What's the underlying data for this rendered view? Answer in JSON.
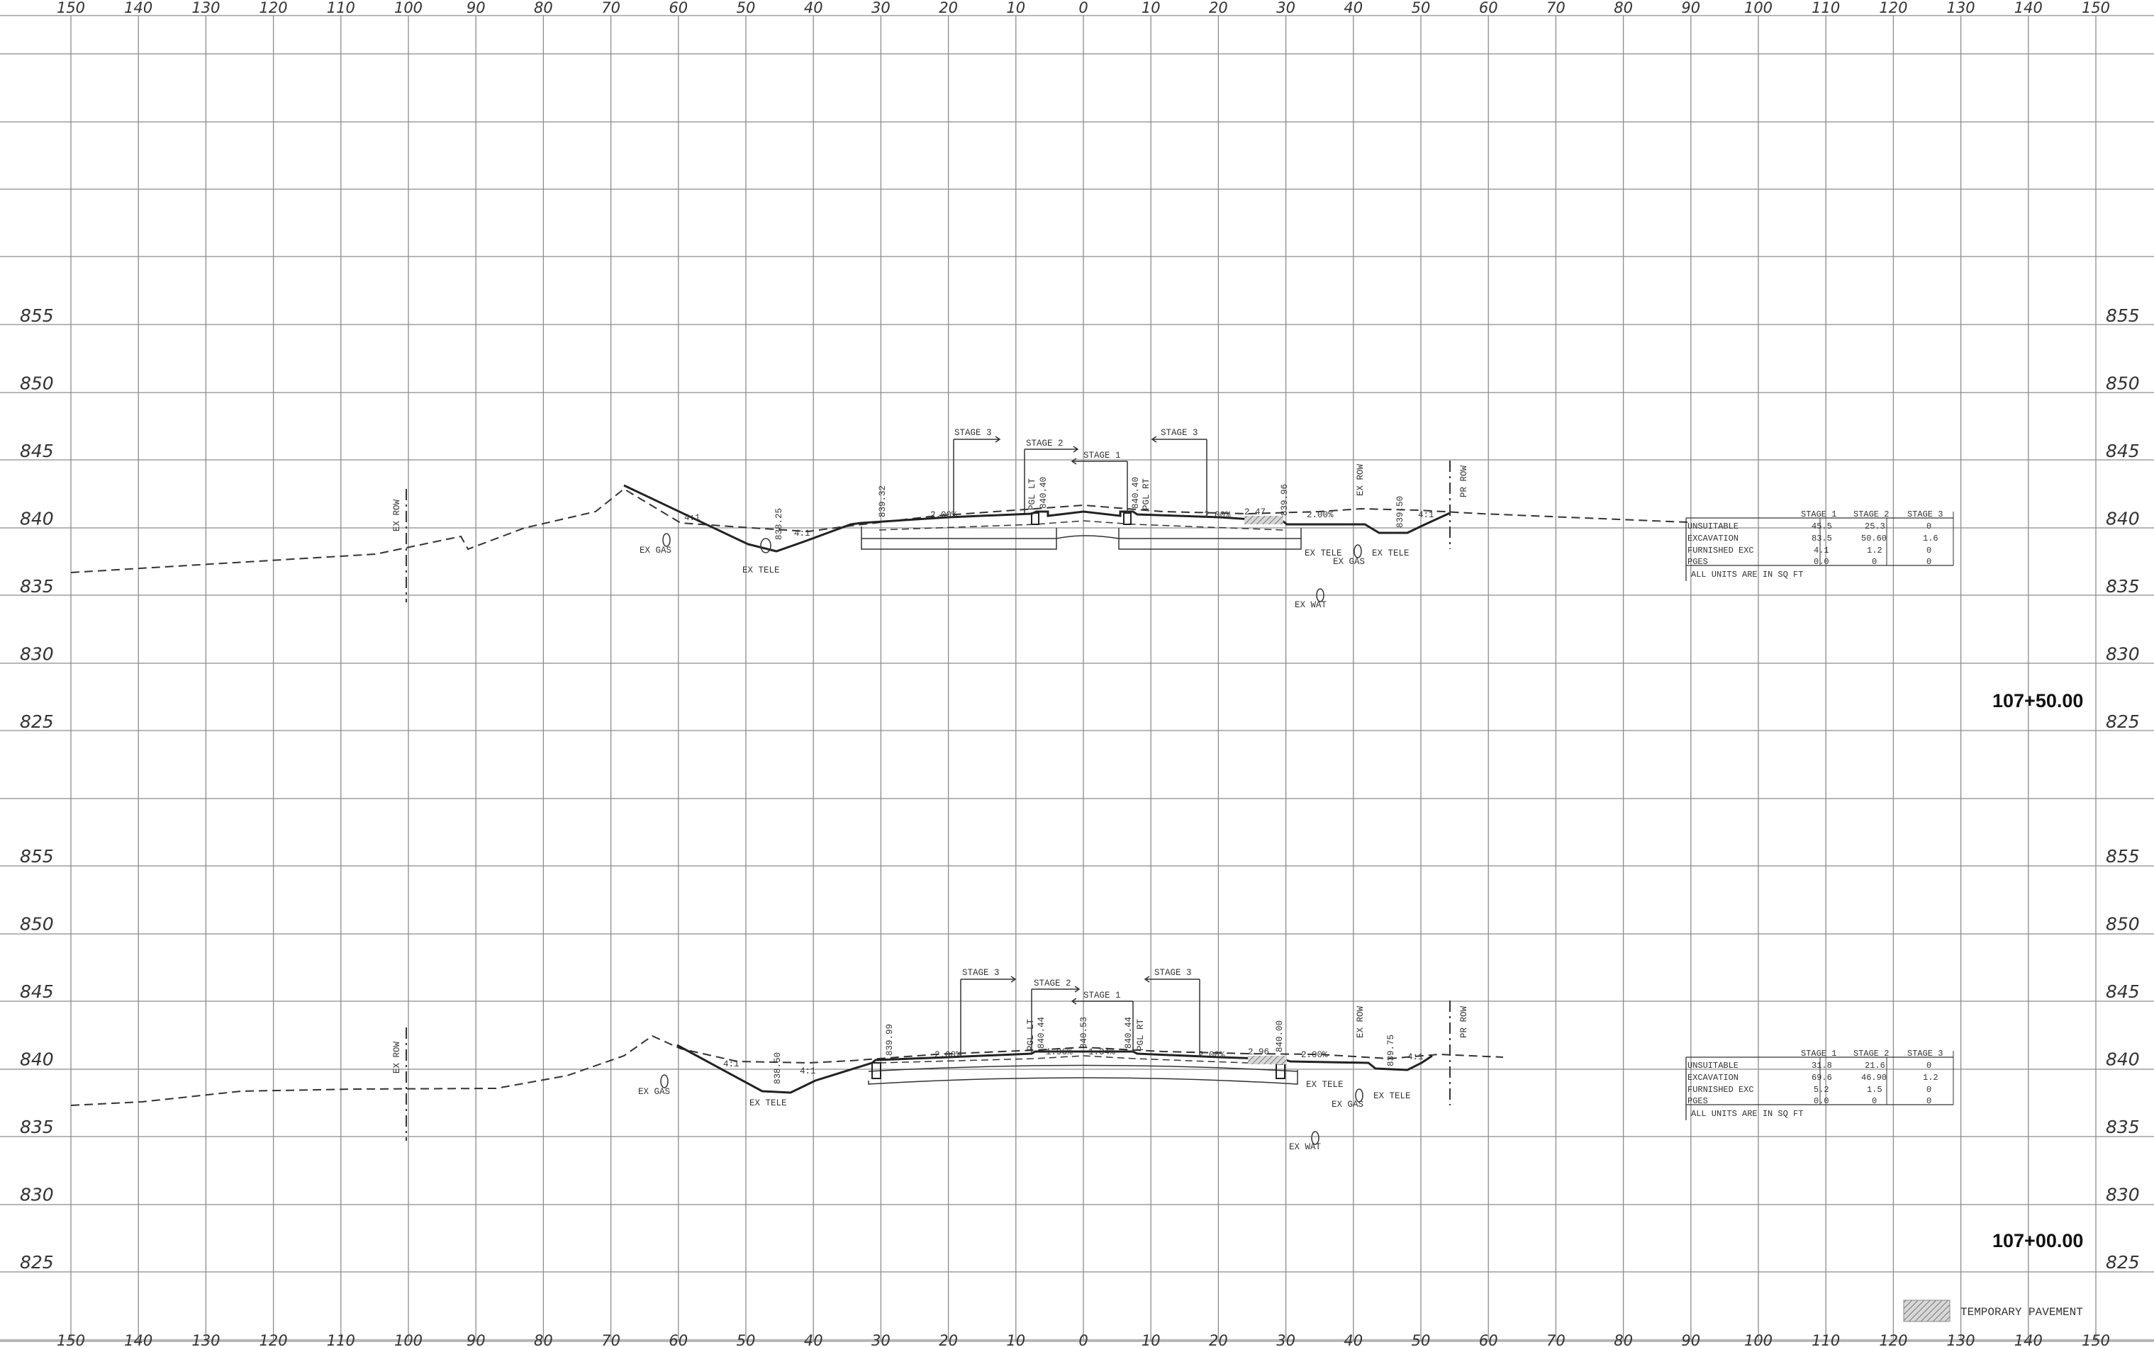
{
  "x_axis_labels": [
    "150",
    "140",
    "130",
    "120",
    "110",
    "100",
    "90",
    "80",
    "70",
    "60",
    "50",
    "40",
    "30",
    "20",
    "10",
    "0",
    "10",
    "20",
    "30",
    "40",
    "50",
    "60",
    "70",
    "80",
    "90",
    "100",
    "110",
    "120",
    "130",
    "140",
    "150"
  ],
  "sections": [
    {
      "station": "107+50.00",
      "elevations": [
        "855",
        "850",
        "845",
        "840",
        "835",
        "830",
        "825"
      ],
      "stage_labels": {
        "stage3_left": "STAGE 3",
        "stage2": "STAGE 2",
        "stage1": "STAGE 1",
        "stage3_right": "STAGE 3"
      },
      "grade_labels": {
        "pgl_lt": "PGL LT",
        "pgl_rt": "PGL RT"
      },
      "elev_notes": [
        "838.25",
        "839.32",
        "840.40",
        "840.40",
        "839.96",
        "839.50"
      ],
      "slope_notes": [
        "2.00%",
        "2.00%",
        "2.47",
        "2.00%"
      ],
      "ratio_notes": [
        "4:1",
        "4:1",
        "4:1"
      ],
      "row_labels": {
        "ex_row": "EX ROW",
        "ex_row_right": "EX ROW",
        "pr_row": "PR ROW"
      },
      "utility_labels": {
        "gas_left": "EX GAS",
        "tele_left": "EX TELE",
        "tele_right": "EX TELE",
        "gas_right": "EX GAS",
        "tele_right2": "EX TELE",
        "wat": "EX WAT"
      },
      "quantities": {
        "headers": [
          "STAGE 1",
          "STAGE 2",
          "STAGE 3"
        ],
        "rows": [
          {
            "label": "UNSUITABLE",
            "values": [
              "45.5",
              "25.3",
              "0"
            ]
          },
          {
            "label": "EXCAVATION",
            "values": [
              "83.5",
              "50.60",
              "1.6"
            ]
          },
          {
            "label": "FURNISHED EXC",
            "values": [
              "4.1",
              "1.2",
              "0"
            ]
          },
          {
            "label": "PGES",
            "values": [
              "0.0",
              "0",
              "0"
            ]
          }
        ],
        "note": "ALL UNITS ARE IN SQ FT"
      }
    },
    {
      "station": "107+00.00",
      "elevations": [
        "855",
        "850",
        "845",
        "840",
        "835",
        "830",
        "825"
      ],
      "stage_labels": {
        "stage3_left": "STAGE 3",
        "stage2": "STAGE 2",
        "stage1": "STAGE 1",
        "stage3_right": "STAGE 3"
      },
      "grade_labels": {
        "pgl_lt": "PGL LT",
        "pgl_rt": "PGL RT"
      },
      "elev_notes": [
        "838.50",
        "839.99",
        "840.44",
        "840.53",
        "840.44",
        "840.00",
        "839.75"
      ],
      "slope_notes": [
        "2.00%",
        "1.96%",
        "1.34%",
        "2.00%",
        "2.96",
        "2.00%"
      ],
      "ratio_notes": [
        "4:1",
        "4:1",
        "4:1"
      ],
      "row_labels": {
        "ex_row": "EX ROW",
        "ex_row_right": "EX ROW",
        "pr_row": "PR ROW"
      },
      "utility_labels": {
        "gas_left": "EX GAS",
        "tele_left": "EX TELE",
        "tele_right": "EX TELE",
        "gas_right": "EX GAS",
        "tele_right2": "EX TELE",
        "wat": "EX WAT"
      },
      "quantities": {
        "headers": [
          "STAGE 1",
          "STAGE 2",
          "STAGE 3"
        ],
        "rows": [
          {
            "label": "UNSUITABLE",
            "values": [
              "31.8",
              "21.6",
              "0"
            ]
          },
          {
            "label": "EXCAVATION",
            "values": [
              "69.6",
              "46.90",
              "1.2"
            ]
          },
          {
            "label": "FURNISHED EXC",
            "values": [
              "5.2",
              "1.5",
              "0"
            ]
          },
          {
            "label": "PGES",
            "values": [
              "0.0",
              "0",
              "0"
            ]
          }
        ],
        "note": "ALL UNITS ARE IN SQ FT"
      }
    }
  ],
  "legend": {
    "label": "TEMPORARY PAVEMENT",
    "swatch_color": "#9a9a9a"
  },
  "colors": {
    "grid": "#8c8c8c",
    "line": "#222222",
    "background": "#ffffff"
  }
}
